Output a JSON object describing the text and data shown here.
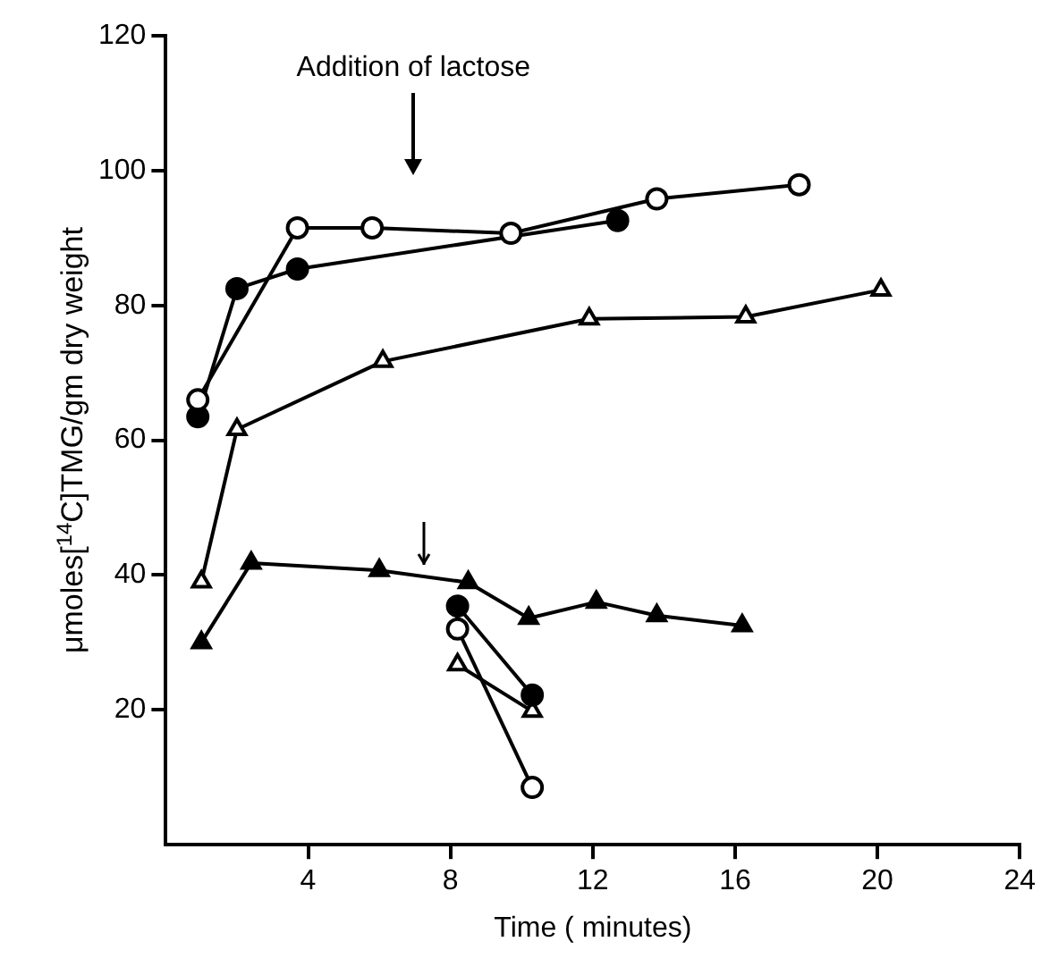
{
  "chart_data": {
    "type": "line",
    "xlabel": "Time ( minutes)",
    "ylabel": "μmoles[$^{14}$C]TMG/gm dry weight",
    "xlim": [
      0,
      24
    ],
    "xticks": [
      4,
      8,
      12,
      16,
      20,
      24
    ],
    "ylim": [
      0,
      120
    ],
    "yticks": [
      20,
      40,
      60,
      80,
      100,
      120
    ],
    "grid": false,
    "legend": false,
    "line_style": "solid",
    "annotations": [
      "Addition of lactose"
    ],
    "series": [
      {
        "color": "#ffffff",
        "marker": "circle",
        "x": [
          0.9,
          3.7,
          5.8,
          9.7,
          13.8,
          17.8
        ],
        "values": [
          66,
          91.5,
          91.5,
          90.7,
          95.8,
          97.9
        ]
      },
      {
        "color": "#000000",
        "marker": "circle",
        "x": [
          0.9,
          2,
          3.7,
          12.7
        ],
        "values": [
          63.5,
          82.5,
          85.4,
          92.6
        ]
      },
      {
        "color": "#ffffff",
        "marker": "triangle",
        "x": [
          1,
          2,
          6.1,
          11.9,
          16.3,
          20.1
        ],
        "values": [
          39,
          61.6,
          71.7,
          78,
          78.3,
          82.3
        ]
      },
      {
        "color": "#000000",
        "marker": "triangle",
        "x": [
          1,
          2.4,
          6,
          8.5,
          10.2,
          12.1,
          13.8,
          16.2
        ],
        "values": [
          30,
          41.8,
          40.7,
          38.9,
          33.6,
          36,
          34,
          32.5
        ]
      },
      {
        "color": "#000000",
        "marker": "circle",
        "x": [
          8.2,
          10.3
        ],
        "values": [
          35.4,
          22.2
        ]
      },
      {
        "color": "#ffffff",
        "marker": "circle",
        "x": [
          8.2,
          10.3
        ],
        "values": [
          32,
          8.5
        ]
      },
      {
        "color": "#ffffff",
        "marker": "triangle",
        "x": [
          8.2,
          10.3
        ],
        "values": [
          26.7,
          19.8
        ]
      }
    ]
  }
}
